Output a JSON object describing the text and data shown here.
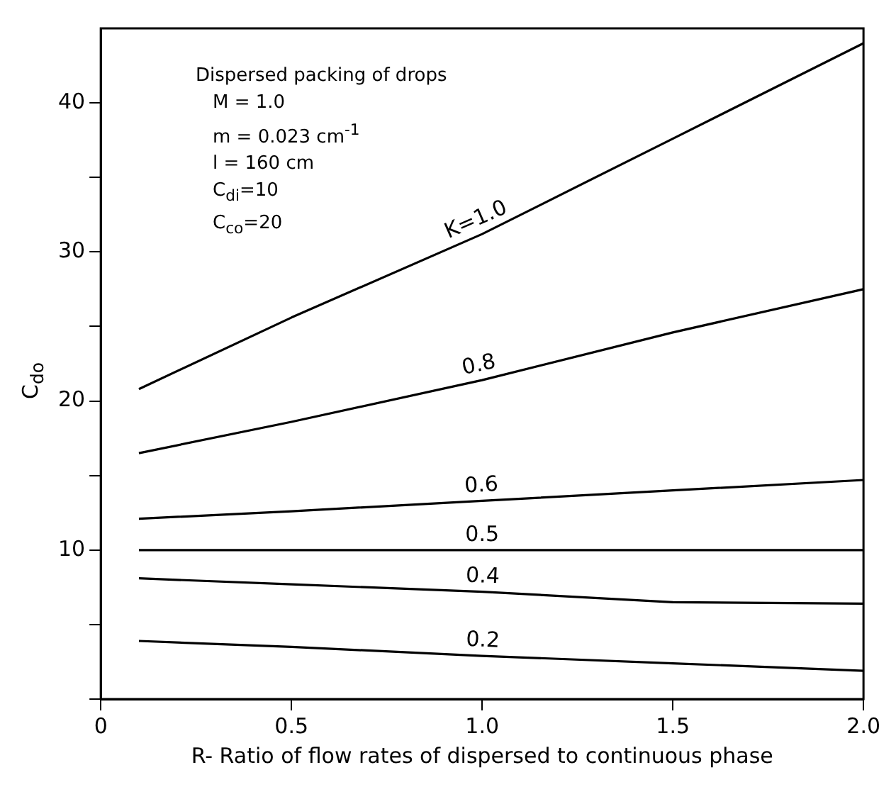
{
  "chart_data": {
    "type": "line",
    "xlabel": "R- Ratio of flow rates of dispersed to continuous phase",
    "ylabel": "C$_{do}$",
    "annotations": [
      "Dispersed packing  of drops",
      "M = 1.0",
      "m = 0.023 cm$^{-1}$",
      "l = 160 cm",
      "C$_{di}$=10",
      "C$_{co}$=20"
    ],
    "x": [
      0.1,
      0.5,
      1.0,
      1.5,
      2.0
    ],
    "series": [
      {
        "name": "K=1.0",
        "color": "#000000",
        "values": [
          20.8,
          25.6,
          31.2,
          37.6,
          44
        ]
      },
      {
        "name": "0.8",
        "color": "#000000",
        "values": [
          16.5,
          18.6,
          21.4,
          24.6,
          27.5
        ]
      },
      {
        "name": "0.6",
        "color": "#000000",
        "values": [
          12.1,
          12.6,
          13.3,
          14.0,
          14.7
        ]
      },
      {
        "name": "0.5",
        "color": "#000000",
        "values": [
          10,
          10,
          10,
          10,
          10
        ]
      },
      {
        "name": "0.4",
        "color": "#000000",
        "values": [
          8.1,
          7.7,
          7.2,
          6.5,
          6.4
        ]
      },
      {
        "name": "0.2",
        "color": "#000000",
        "values": [
          3.9,
          3.5,
          2.9,
          2.4,
          1.9
        ]
      }
    ],
    "xlim": [
      0,
      2.0
    ],
    "xticks": [
      0,
      0.5,
      {
        "value": 1,
        "label": "1.0"
      },
      {
        "value": 1.5,
        "label": "1.5"
      },
      {
        "value": 2,
        "label": "2.0"
      }
    ],
    "ylim": [
      0,
      45
    ],
    "yticks": [
      {
        "value": 0,
        "label": null
      },
      {
        "value": 5,
        "label": null
      },
      10,
      {
        "value": 15,
        "label": null
      },
      20,
      {
        "value": 25,
        "label": null
      },
      30,
      {
        "value": 35,
        "label": null
      },
      40
    ],
    "grid": false,
    "legend": false,
    "marker": "none",
    "line_style": "solid"
  }
}
